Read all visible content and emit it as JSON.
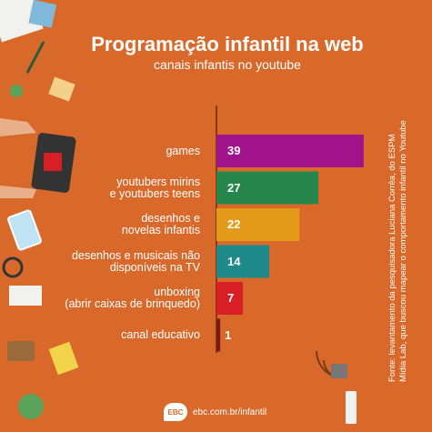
{
  "title": "Programação infantil na web",
  "subtitle": "canais infantis no youtube",
  "source_lines": [
    "Fonte: levantamento da pesquisadora Luciana Corrêa, do ESPM",
    "Mídia Lab, que buscou mapear o comportamento infantil no Youtube"
  ],
  "footer": {
    "logo_text": "EBC",
    "url": "ebc.com.br/infantil"
  },
  "colors": {
    "background": "#d9692a",
    "axis": "#8a3a12"
  },
  "chart_data": {
    "type": "bar",
    "orientation": "horizontal",
    "categories": [
      [
        "games"
      ],
      [
        "youtubers mirins",
        "e youtubers teens"
      ],
      [
        "desenhos e",
        "novelas infantis"
      ],
      [
        "desenhos e musicais não",
        "disponíveis na TV"
      ],
      [
        "unboxing",
        "(abrir caixas de brinquedo)"
      ],
      [
        "canal educativo"
      ]
    ],
    "values": [
      39,
      27,
      22,
      14,
      7,
      1
    ],
    "value_labels": [
      "39",
      "27",
      "22",
      "14",
      "7",
      "1"
    ],
    "colors": [
      "#a0138a",
      "#27864c",
      "#e49b1b",
      "#1e8a8a",
      "#d81f26",
      "#7a1a1a"
    ],
    "xlim": [
      0,
      40
    ],
    "title": "",
    "xlabel": "",
    "ylabel": "",
    "grid": false,
    "legend": "none"
  }
}
